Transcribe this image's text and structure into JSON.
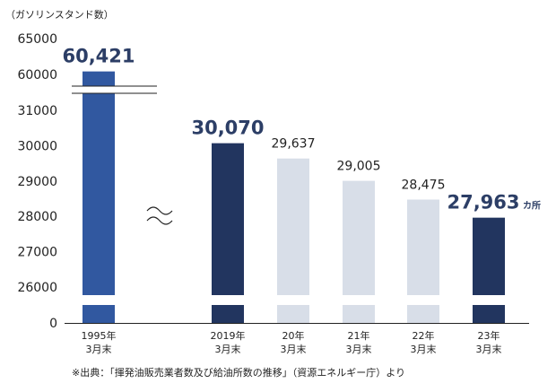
{
  "chart_data": {
    "type": "bar",
    "ylabel": "（ガソリンスタンド数）",
    "yticks": [
      "65000",
      "60000",
      "31000",
      "30000",
      "29000",
      "28000",
      "27000",
      "26000",
      "0"
    ],
    "axis_breaks": [
      "60000-31000",
      "26000-0"
    ],
    "categories": [
      {
        "line1": "1995年",
        "line2": "3月末"
      },
      {
        "line1": "2019年",
        "line2": "3月末"
      },
      {
        "line1": "20年",
        "line2": "3月末"
      },
      {
        "line1": "21年",
        "line2": "3月末"
      },
      {
        "line1": "22年",
        "line2": "3月末"
      },
      {
        "line1": "23年",
        "line2": "3月末"
      }
    ],
    "values": [
      60421,
      30070,
      29637,
      29005,
      28475,
      27963
    ],
    "labels": [
      "60,421",
      "30,070",
      "29,637",
      "29,005",
      "28,475",
      "27,963"
    ],
    "unit_label": "カ所",
    "colors": [
      "#3158a0",
      "#22355f",
      "#d8dee8",
      "#d8dee8",
      "#d8dee8",
      "#22355f"
    ],
    "emphasized": [
      true,
      true,
      false,
      false,
      false,
      true
    ]
  },
  "source": "※出典：「揮発油販売業者数及び給油所数の推移」（資源エネルギー庁）より"
}
